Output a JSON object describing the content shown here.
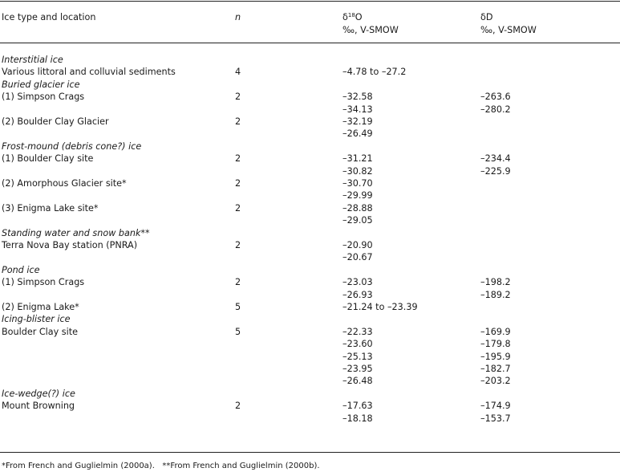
{
  "header": {
    "col_type": "Ice type and location",
    "col_n": "n",
    "o18_delta": "δ",
    "o18_sup": "18",
    "o18_el": "O",
    "o18_unit": "‰, V-SMOW",
    "dd": "δD",
    "dd_unit": "‰, V-SMOW"
  },
  "rows": [
    {
      "type": "Interstitial ice"
    },
    {
      "loc": "Various littoral and colluvial sediments",
      "n": "4",
      "o18": "–4.78 to –27.2"
    },
    {
      "type": "Buried glacier ice"
    },
    {
      "loc": "(1) Simpson Crags",
      "n": "2",
      "o18": "–32.58",
      "dd": "–263.6"
    },
    {
      "o18": "–34.13",
      "dd": "–280.2"
    },
    {
      "loc": "(2) Boulder Clay Glacier",
      "n": "2",
      "o18": "–32.19"
    },
    {
      "o18": "–26.49"
    },
    {
      "type": "Frost-mound (debris cone?) ice"
    },
    {
      "loc": "(1) Boulder Clay site",
      "n": "2",
      "o18": "–31.21",
      "dd": "–234.4"
    },
    {
      "o18": "–30.82",
      "dd": "–225.9"
    },
    {
      "loc": "(2) Amorphous Glacier site*",
      "n": "2",
      "o18": "–30.70"
    },
    {
      "o18": "–29.99"
    },
    {
      "loc": "(3) Enigma Lake site*",
      "n": "2",
      "o18": "–28.88"
    },
    {
      "o18": "–29.05"
    },
    {
      "type": "Standing water and snow bank**"
    },
    {
      "loc": "Terra Nova Bay station (PNRA)",
      "n": "2",
      "o18": "–20.90"
    },
    {
      "o18": "–20.67"
    },
    {
      "type": "Pond ice"
    },
    {
      "loc": "(1) Simpson Crags",
      "n": "2",
      "o18": "–23.03",
      "dd": "–198.2"
    },
    {
      "o18": "–26.93",
      "dd": "–189.2"
    },
    {
      "loc": "(2) Enigma Lake*",
      "n": "5",
      "o18": "–21.24 to –23.39"
    },
    {
      "type": "Icing-blister ice"
    },
    {
      "loc": "Boulder Clay site",
      "n": "5",
      "o18": "–22.33",
      "dd": "–169.9"
    },
    {
      "o18": "–23.60",
      "dd": "–179.8"
    },
    {
      "o18": "–25.13",
      "dd": "–195.9"
    },
    {
      "o18": "–23.95",
      "dd": "–182.7"
    },
    {
      "o18": "–26.48",
      "dd": "–203.2"
    },
    {
      "type": "Ice-wedge(?) ice"
    },
    {
      "loc": "Mount Browning",
      "n": "2",
      "o18": "–17.63",
      "dd": "–174.9"
    },
    {
      "o18": "–18.18",
      "dd": "–153.7"
    }
  ],
  "footnote": "*From French and Guglielmin (2000a).   **From French and Guglielmin (2000b)."
}
